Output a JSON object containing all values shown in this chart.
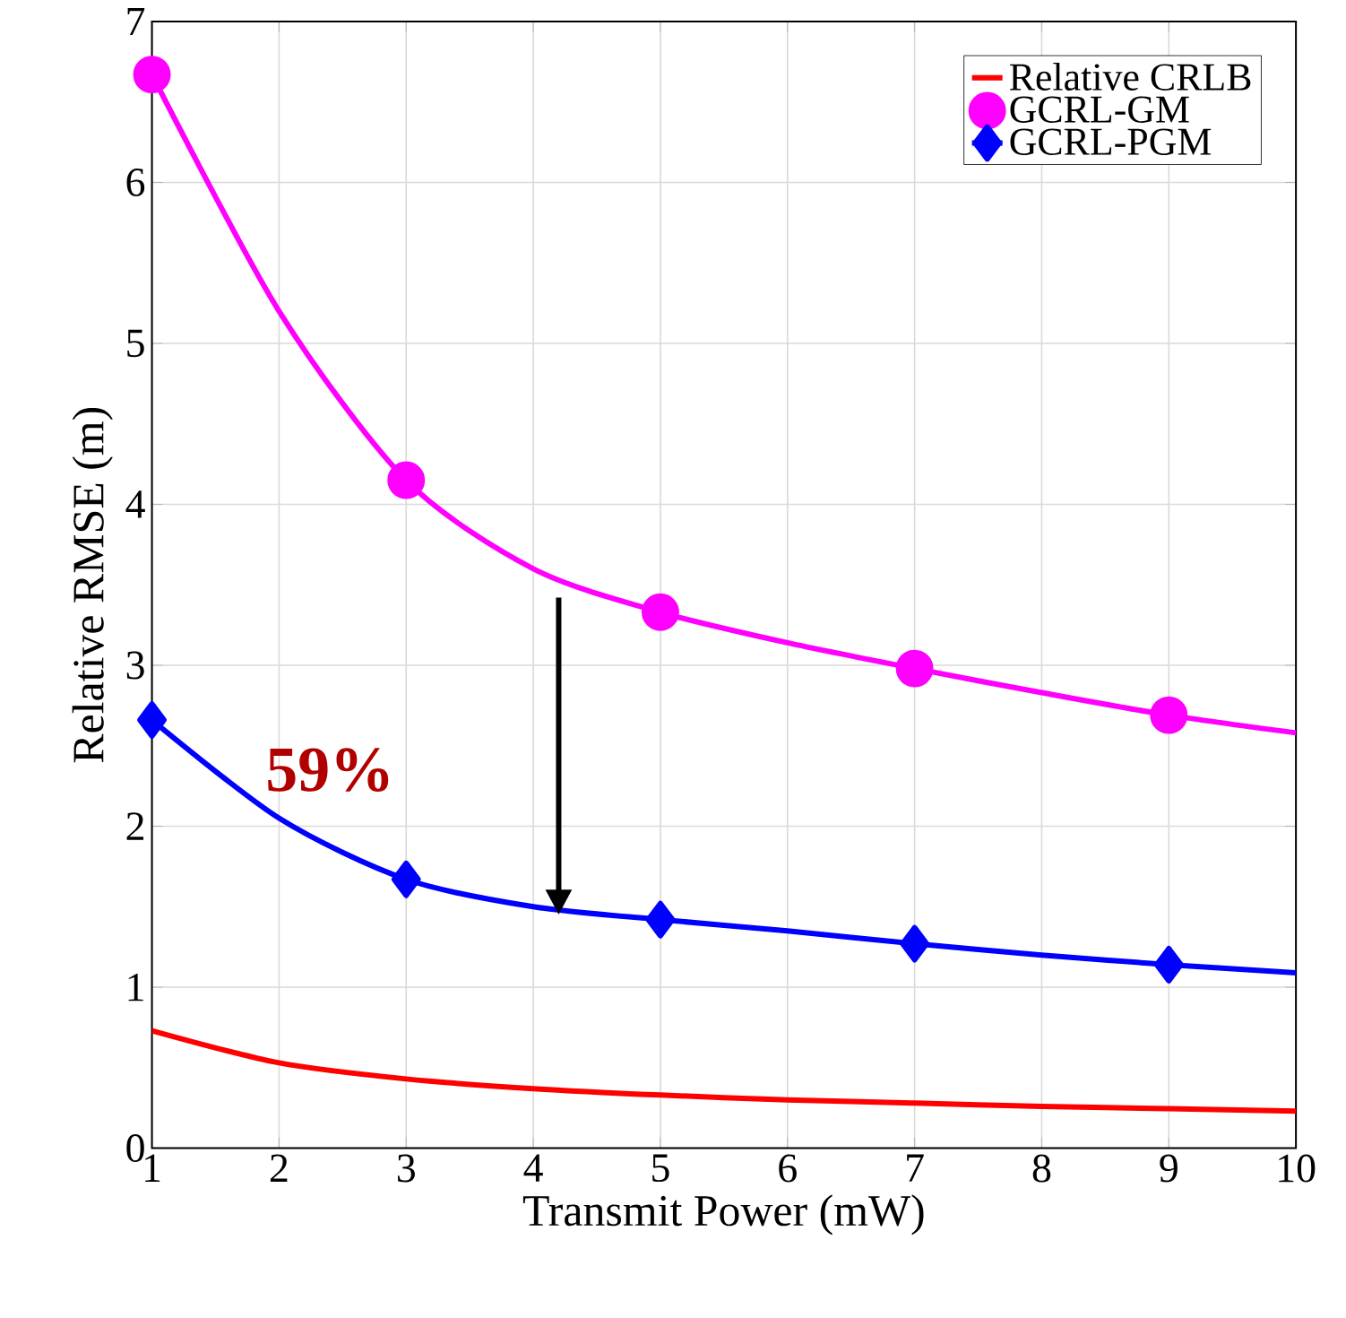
{
  "chart_data": {
    "type": "line",
    "xlabel": "Transmit Power (mW)",
    "ylabel": "Relative RMSE (m)",
    "x": [
      1,
      2,
      3,
      4,
      5,
      6,
      7,
      8,
      9,
      10
    ],
    "series": [
      {
        "name": "Relative CRLB",
        "color": "#ff0000",
        "marker": "none",
        "values": [
          0.73,
          0.53,
          0.43,
          0.37,
          0.33,
          0.3,
          0.28,
          0.26,
          0.245,
          0.23
        ]
      },
      {
        "name": "GCRL-GM",
        "color": "#ff00ff",
        "marker": "circle",
        "values": [
          6.67,
          5.2,
          4.15,
          3.6,
          3.33,
          3.14,
          2.98,
          2.83,
          2.69,
          2.58
        ]
      },
      {
        "name": "GCRL-PGM",
        "color": "#0000ff",
        "marker": "diamond",
        "values": [
          2.66,
          2.05,
          1.67,
          1.5,
          1.42,
          1.35,
          1.27,
          1.2,
          1.14,
          1.09
        ]
      }
    ],
    "xlim": [
      1,
      10
    ],
    "ylim": [
      0,
      7
    ],
    "xticks": [
      1,
      2,
      3,
      4,
      5,
      6,
      7,
      8,
      9,
      10
    ],
    "yticks": [
      0,
      1,
      2,
      3,
      4,
      5,
      6,
      7
    ],
    "grid": true,
    "legend": "top right",
    "annotations": [
      "59%"
    ]
  }
}
